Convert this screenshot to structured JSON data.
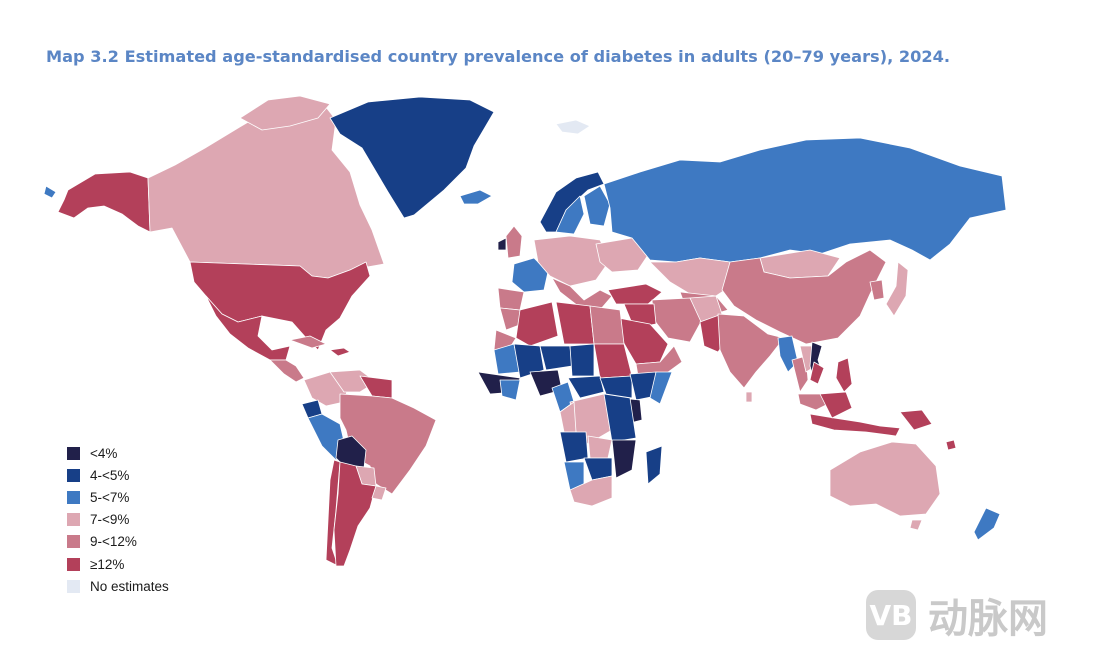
{
  "title": "Map 3.2 Estimated age-standardised country prevalence of diabetes in adults (20–79 years), 2024.",
  "colors": {
    "lt4": "#21204a",
    "c4to5": "#173f87",
    "c5to7": "#3e79c2",
    "c7to9": "#dda7b2",
    "c9to12": "#c97a8a",
    "ge12": "#b3405a",
    "none": "#e3e9f3"
  },
  "legend": [
    {
      "label": "<4%",
      "color": "#21204a"
    },
    {
      "label": "4-<5%",
      "color": "#173f87"
    },
    {
      "label": "5-<7%",
      "color": "#3e79c2"
    },
    {
      "label": "7-<9%",
      "color": "#dda7b2"
    },
    {
      "label": "9-<12%",
      "color": "#c97a8a"
    },
    {
      "label": "≥12%",
      "color": "#b3405a"
    },
    {
      "label": "No estimates",
      "color": "#e3e9f3"
    }
  ],
  "watermark": {
    "logo": "VB",
    "text": "动脉网"
  }
}
